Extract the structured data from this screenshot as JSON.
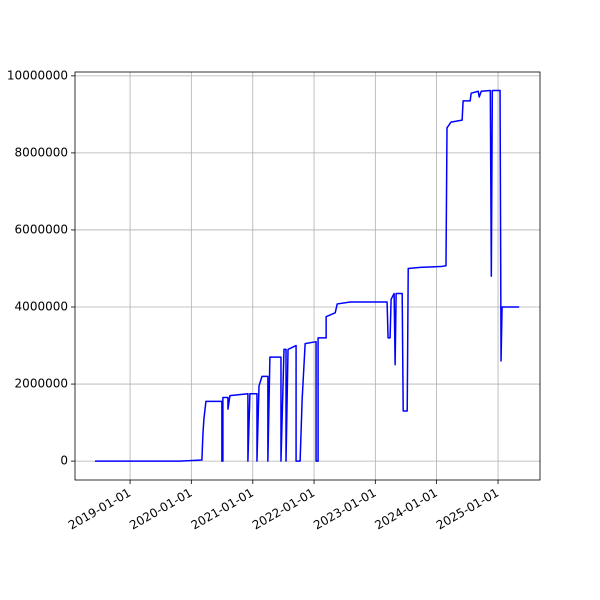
{
  "chart_data": {
    "type": "line",
    "x": [
      "2018-06-06",
      "2019-10-26",
      "2020-03-04",
      "2020-03-10",
      "2020-03-16",
      "2020-03-28",
      "2020-07-01",
      "2020-07-01",
      "2020-07-07",
      "2020-07-07",
      "2020-08-06",
      "2020-08-06",
      "2020-08-18",
      "2020-12-03",
      "2020-12-03",
      "2020-12-15",
      "2021-01-26",
      "2021-01-26",
      "2021-02-07",
      "2021-02-25",
      "2021-04-01",
      "2021-04-01",
      "2021-04-13",
      "2021-06-18",
      "2021-06-18",
      "2021-07-06",
      "2021-07-18",
      "2021-07-18",
      "2021-07-30",
      "2021-09-16",
      "2021-09-16",
      "2021-10-10",
      "2021-10-22",
      "2021-11-09",
      "2022-01-13",
      "2022-01-13",
      "2022-01-25",
      "2022-01-25",
      "2022-03-14",
      "2022-03-14",
      "2022-05-07",
      "2022-05-19",
      "2022-08-05",
      "2023-03-12",
      "2023-03-18",
      "2023-03-30",
      "2023-04-05",
      "2023-04-23",
      "2023-04-29",
      "2023-05-05",
      "2023-06-10",
      "2023-06-16",
      "2023-07-10",
      "2023-07-16",
      "2023-09-26",
      "2024-01-27",
      "2024-02-26",
      "2024-03-03",
      "2024-03-27",
      "2024-06-01",
      "2024-06-07",
      "2024-07-19",
      "2024-07-25",
      "2024-09-05",
      "2024-09-11",
      "2024-09-23",
      "2024-11-16",
      "2024-11-22",
      "2024-11-28",
      "2025-01-13",
      "2025-01-19",
      "2025-01-25",
      "2025-05-07"
    ],
    "series": [
      {
        "color": "#0000ff",
        "values": [
          0,
          0,
          30000,
          700000,
          1100000,
          1550000,
          1550000,
          0,
          0,
          1650000,
          1650000,
          1350000,
          1700000,
          1750000,
          0,
          1750000,
          1750000,
          0,
          1950000,
          2200000,
          2200000,
          0,
          2700000,
          2700000,
          0,
          2900000,
          2900000,
          0,
          2900000,
          3000000,
          0,
          0,
          1600000,
          3050000,
          3100000,
          0,
          0,
          3200000,
          3200000,
          3750000,
          3850000,
          4080000,
          4130000,
          4130000,
          3200000,
          3200000,
          4200000,
          4350000,
          2500000,
          4350000,
          4350000,
          1300000,
          1300000,
          5000000,
          5030000,
          5050000,
          5070000,
          8650000,
          8800000,
          8850000,
          9350000,
          9350000,
          9550000,
          9600000,
          9450000,
          9600000,
          9620000,
          4800000,
          9620000,
          9620000,
          2600000,
          4000000,
          4000000
        ]
      }
    ],
    "xlim": [
      "2018-02-07",
      "2025-09-08"
    ],
    "xticks": [
      "2019-01-01",
      "2020-01-01",
      "2021-01-01",
      "2022-01-01",
      "2023-01-01",
      "2024-01-01",
      "2025-01-01"
    ],
    "ylim": [
      -490000,
      10100000
    ],
    "yticks": [
      0,
      2000000,
      4000000,
      6000000,
      8000000,
      10000000
    ],
    "grid": true
  }
}
